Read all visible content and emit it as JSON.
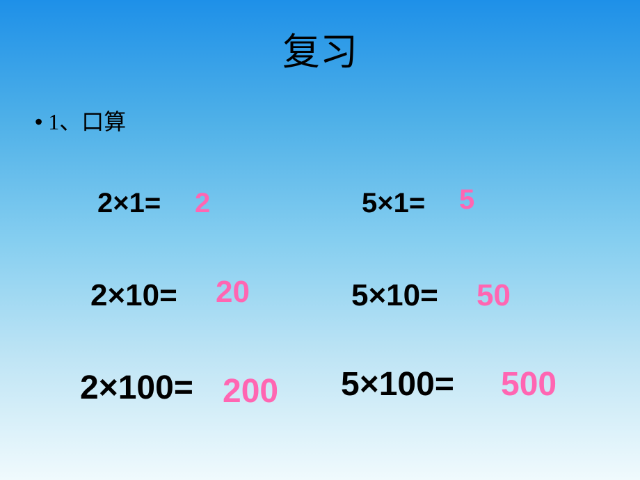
{
  "title": "复习",
  "subtitle_bullet": "•",
  "subtitle": "1、口算",
  "equations": {
    "r1c1": {
      "expr": "2×1=",
      "ans": "2"
    },
    "r1c2": {
      "expr": "5×1=",
      "ans": "5"
    },
    "r2c1": {
      "expr": "2×10=",
      "ans": "20"
    },
    "r2c2": {
      "expr": "5×10=",
      "ans": "50"
    },
    "r3c1": {
      "expr": "2×100=",
      "ans": "200"
    },
    "r3c2": {
      "expr": "5×100=",
      "ans": "500"
    }
  },
  "style": {
    "background_gradient": [
      "#1e90e8",
      "#4eb0e8",
      "#85cef0",
      "#c0e5f5",
      "#f0fafd"
    ],
    "title_fontsize": 54,
    "subtitle_fontsize": 32,
    "eq_color": "#000000",
    "ans_color": "#ff66b2",
    "row1_fontsize": 40,
    "row2_fontsize": 44,
    "row3_fontsize": 48,
    "title_font": "SimSun",
    "eq_font": "Arial",
    "eq_fontweight": "bold"
  }
}
